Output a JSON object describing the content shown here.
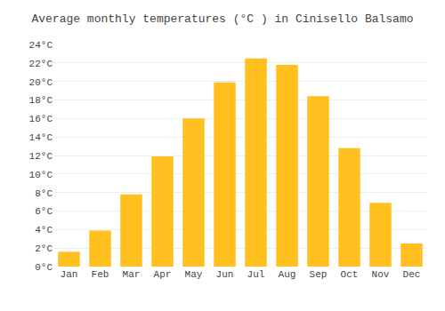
{
  "chart_data": {
    "type": "bar",
    "title": "Average monthly temperatures (°C ) in Cinisello Balsamo",
    "categories": [
      "Jan",
      "Feb",
      "Mar",
      "Apr",
      "May",
      "Jun",
      "Jul",
      "Aug",
      "Sep",
      "Oct",
      "Nov",
      "Dec"
    ],
    "values": [
      1.6,
      3.9,
      7.8,
      11.9,
      16.0,
      19.9,
      22.5,
      21.8,
      18.4,
      12.8,
      6.9,
      2.5
    ],
    "color": "#FFC020",
    "ylim": [
      0,
      24
    ],
    "yticks": [
      {
        "value": 0,
        "label": "0°C"
      },
      {
        "value": 2,
        "label": "2°C"
      },
      {
        "value": 4,
        "label": "4°C"
      },
      {
        "value": 6,
        "label": "6°C"
      },
      {
        "value": 8,
        "label": "8°C"
      },
      {
        "value": 10,
        "label": "10°C"
      },
      {
        "value": 12,
        "label": "12°C"
      },
      {
        "value": 14,
        "label": "14°C"
      },
      {
        "value": 16,
        "label": "16°C"
      },
      {
        "value": 18,
        "label": "18°C"
      },
      {
        "value": 20,
        "label": "20°C"
      },
      {
        "value": 22,
        "label": "22°C"
      },
      {
        "value": 24,
        "label": "24°C"
      }
    ],
    "grid": true
  }
}
